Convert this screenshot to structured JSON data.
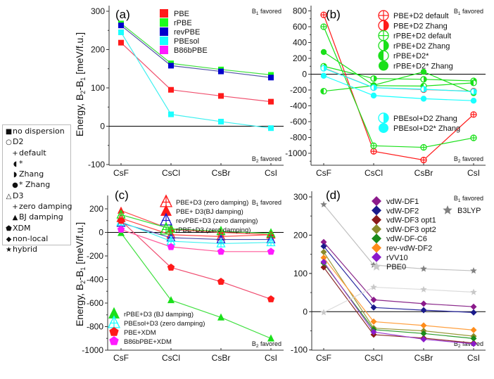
{
  "figure": {
    "ylabel_prefix": "Energy, B",
    "ylabel_sub2": "2",
    "ylabel_mid": "-B",
    "ylabel_sub1": "1",
    "ylabel_suffix": " [meV/f.u.]",
    "b1_favored": "favored",
    "b2_favored": "favored",
    "b1_label": "B",
    "b1_sub": "1",
    "b2_label": "B",
    "b2_sub": "2"
  },
  "marker_key": {
    "rows": [
      {
        "glyph": "■",
        "label": "no dispersion",
        "indent": false
      },
      {
        "glyph": "○",
        "label": "D2",
        "indent": false
      },
      {
        "glyph": "+",
        "label": "default",
        "indent": true
      },
      {
        "glyph": "◖",
        "label": "*",
        "indent": true
      },
      {
        "glyph": "◗",
        "label": "Zhang",
        "indent": true
      },
      {
        "glyph": "●",
        "label": "* Zhang",
        "indent": true
      },
      {
        "glyph": "△",
        "label": "D3",
        "indent": false
      },
      {
        "glyph": "+",
        "label": "zero damping",
        "indent": true
      },
      {
        "glyph": "▲",
        "label": "BJ damping",
        "indent": true
      },
      {
        "glyph": "⬟",
        "label": "XDM",
        "indent": false
      },
      {
        "glyph": "◆",
        "label": "non-local",
        "indent": false
      },
      {
        "glyph": "★",
        "label": "hybrid",
        "indent": false
      }
    ]
  },
  "chart_data": [
    {
      "panel": "(a)",
      "type": "line",
      "categories": [
        "CsF",
        "CsCl",
        "CsBr",
        "CsI"
      ],
      "ylim": [
        -100,
        300
      ],
      "yticks": [
        -100,
        0,
        100,
        200,
        300
      ],
      "ylabel": "Energy, B2-B1 [meV/f.u.]",
      "annotations": [
        "B1 favored",
        "B2 favored"
      ],
      "series": [
        {
          "name": "PBE",
          "color": "#ff1a1a",
          "line": "#f0506e",
          "marker": "square",
          "values": [
            218,
            95,
            79,
            64
          ]
        },
        {
          "name": "rPBE",
          "color": "#1aff1a",
          "line": "#40e040",
          "marker": "square",
          "values": [
            268,
            164,
            148,
            134
          ]
        },
        {
          "name": "revPBE",
          "color": "#0000cc",
          "line": "#5555aa",
          "marker": "square",
          "values": [
            263,
            158,
            143,
            127
          ]
        },
        {
          "name": "PBEsol",
          "color": "#1affff",
          "line": "#40f0f0",
          "marker": "square",
          "values": [
            245,
            31,
            12,
            -5
          ]
        },
        {
          "name": "B86bPBE",
          "color": "#ff1aff",
          "line": "#ff40ff",
          "marker": "square",
          "values": null
        }
      ]
    },
    {
      "panel": "(b)",
      "type": "line",
      "categories": [
        "CsF",
        "CsCl",
        "CsBr",
        "CsI"
      ],
      "ylim": [
        -1150,
        800
      ],
      "yticks": [
        -1000,
        -800,
        -600,
        -400,
        -200,
        0,
        200,
        400,
        600,
        800
      ],
      "annotations": [
        "B1 favored",
        "B2 favored"
      ],
      "series": [
        {
          "name": "PBE+D2 default",
          "color": "#ff1a1a",
          "line": "#ff1a1a",
          "marker": "circle-plus",
          "values": [
            750,
            -975,
            -1085,
            -510
          ]
        },
        {
          "name": "PBE+D2 Zhang",
          "color": "#ff1a1a",
          "line": "#ff5a5a",
          "marker": "circle-half-right",
          "values": [
            80,
            -170,
            -195,
            -215
          ]
        },
        {
          "name": "rPBE+D2 default",
          "color": "#1ae01a",
          "line": "#1ae01a",
          "marker": "circle-plus",
          "values": [
            600,
            -905,
            -925,
            -805
          ]
        },
        {
          "name": "rPBE+D2 Zhang",
          "color": "#1ae01a",
          "line": "#1ae01a",
          "marker": "circle-half-right",
          "values": [
            100,
            -55,
            -65,
            -85
          ]
        },
        {
          "name": "rPBE+D2*",
          "color": "#1ae01a",
          "line": "#1ae01a",
          "marker": "circle-half-left",
          "values": [
            -215,
            -145,
            -150,
            -110
          ]
        },
        {
          "name": "rPBE+D2* Zhang",
          "color": "#1ae01a",
          "line": "#1ae01a",
          "marker": "circle",
          "values": [
            280,
            -140,
            30,
            -240
          ]
        },
        {
          "name": "PBEsol+D2 Zhang",
          "color": "#1affff",
          "line": "#1affff",
          "marker": "circle-half-right",
          "values": [
            75,
            -170,
            -190,
            -220
          ]
        },
        {
          "name": "PBEsol+D2* Zhang",
          "color": "#1affff",
          "line": "#1affff",
          "marker": "circle",
          "values": [
            -20,
            -270,
            -310,
            -335
          ]
        }
      ]
    },
    {
      "panel": "(c)",
      "type": "line",
      "categories": [
        "CsF",
        "CsCl",
        "CsBr",
        "CsI"
      ],
      "ylim": [
        -1000,
        300
      ],
      "yticks": [
        -1000,
        -800,
        -600,
        -400,
        -200,
        0,
        200
      ],
      "ylabel": "Energy, B2-B1 [meV/f.u.]",
      "annotations": [
        "B1 favored",
        "B2 favored"
      ],
      "series": [
        {
          "name": "PBE+D3 (zero damping)",
          "color": "#ff1a1a",
          "line": "#ff4a4a",
          "marker": "triangle-plus",
          "values": [
            120,
            -20,
            -35,
            -20
          ]
        },
        {
          "name": "PBE+ D3(BJ damping)",
          "color": "#ff1a1a",
          "line": "#ff4a4a",
          "marker": "triangle",
          "values": [
            185,
            25,
            0,
            -20
          ]
        },
        {
          "name": "revPBE+D3 (zero damping)",
          "color": "#1a1acc",
          "line": "#4a4aaa",
          "marker": "triangle-plus",
          "values": [
            80,
            -45,
            -60,
            -60
          ]
        },
        {
          "name": "rPBE+D3 (zero damping)",
          "color": "#1ae01a",
          "line": "#40e040",
          "marker": "triangle-plus",
          "values": [
            150,
            30,
            10,
            -10
          ]
        },
        {
          "name": "rPBE+D3 (BJ damping)",
          "color": "#1ae01a",
          "line": "#40e040",
          "marker": "triangle",
          "values": [
            -5,
            -575,
            -722,
            -900
          ]
        },
        {
          "name": "PBEsol+D3 (zero damping)",
          "color": "#1affff",
          "line": "#40f0f0",
          "marker": "triangle-plus",
          "values": [
            90,
            -75,
            -95,
            -85
          ]
        },
        {
          "name": "PBE+XDM",
          "color": "#ff1a1a",
          "line": "#f04a6e",
          "marker": "pentagon",
          "values": [
            100,
            -298,
            -418,
            -567
          ]
        },
        {
          "name": "B86bPBE+XDM",
          "color": "#ff1aff",
          "line": "#ff5a9a",
          "marker": "pentagon",
          "values": [
            24,
            -123,
            -163,
            -163
          ]
        }
      ]
    },
    {
      "panel": "(d)",
      "type": "line",
      "categories": [
        "CsF",
        "CsCl",
        "CsBr",
        "CsI"
      ],
      "ylim": [
        -100,
        300
      ],
      "yticks": [
        -100,
        0,
        100,
        200,
        300
      ],
      "annotations": [
        "B1 favored",
        "B2 favored"
      ],
      "series": [
        {
          "name": "vdW-DF1",
          "color": "#8b1a8b",
          "line": "#8b2a8b",
          "marker": "diamond",
          "values": [
            182,
            31,
            21,
            13
          ]
        },
        {
          "name": "vdW-DF2",
          "color": "#1a1a8b",
          "line": "#2a2aa0",
          "marker": "diamond",
          "values": [
            171,
            11,
            4,
            -2
          ]
        },
        {
          "name": "vdW-DF3 opt1",
          "color": "#8b1a1a",
          "line": "#8b2a2a",
          "marker": "diamond",
          "values": [
            116,
            -60,
            -69,
            -82
          ]
        },
        {
          "name": "vdW-DF3 opt2",
          "color": "#8b8b2a",
          "line": "#9a9a3a",
          "marker": "diamond",
          "values": [
            156,
            -43,
            -50,
            -64
          ]
        },
        {
          "name": "vdW-DF-C6",
          "color": "#1a8b1a",
          "line": "#2a9a2a",
          "marker": "diamond",
          "values": [
            127,
            -47,
            -57,
            -70
          ]
        },
        {
          "name": "rev-vdW-DF2",
          "color": "#ff8c1a",
          "line": "#ffa040",
          "marker": "diamond",
          "values": [
            141,
            -26,
            -36,
            -48
          ]
        },
        {
          "name": "rVV10",
          "color": "#8b1acb",
          "line": "#9a3ad0",
          "marker": "diamond",
          "values": [
            130,
            -53,
            -72,
            -84
          ]
        },
        {
          "name": "PBE0",
          "color": "#c8c8c8",
          "line": "#dcdcdc",
          "marker": "star",
          "values": [
            -2,
            64,
            58,
            51
          ]
        },
        {
          "name": "B3LYP",
          "color": "#808080",
          "line": "#c0c0c0",
          "marker": "star",
          "values": [
            280,
            122,
            112,
            107
          ]
        }
      ]
    }
  ]
}
